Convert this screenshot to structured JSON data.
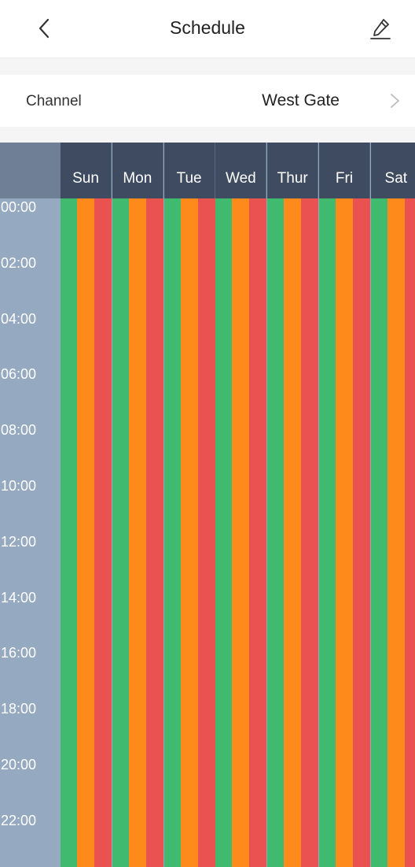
{
  "header": {
    "title": "Schedule",
    "back_icon": "chevron-left-icon",
    "edit_icon": "pencil-icon"
  },
  "channel": {
    "label": "Channel",
    "value": "West Gate",
    "chevron_icon": "chevron-right-icon"
  },
  "colors": {
    "header_bg": "#3e4b60",
    "time_col_bg": "#95a9c1",
    "green": "#3fba6e",
    "orange": "#ff8a1c",
    "red": "#ea5252"
  },
  "schedule": {
    "days": [
      "Sun",
      "Mon",
      "Tue",
      "Wed",
      "Thur",
      "Fri",
      "Sat"
    ],
    "times": [
      "00:00",
      "02:00",
      "04:00",
      "06:00",
      "08:00",
      "10:00",
      "12:00",
      "14:00",
      "16:00",
      "18:00",
      "20:00",
      "22:00"
    ]
  }
}
